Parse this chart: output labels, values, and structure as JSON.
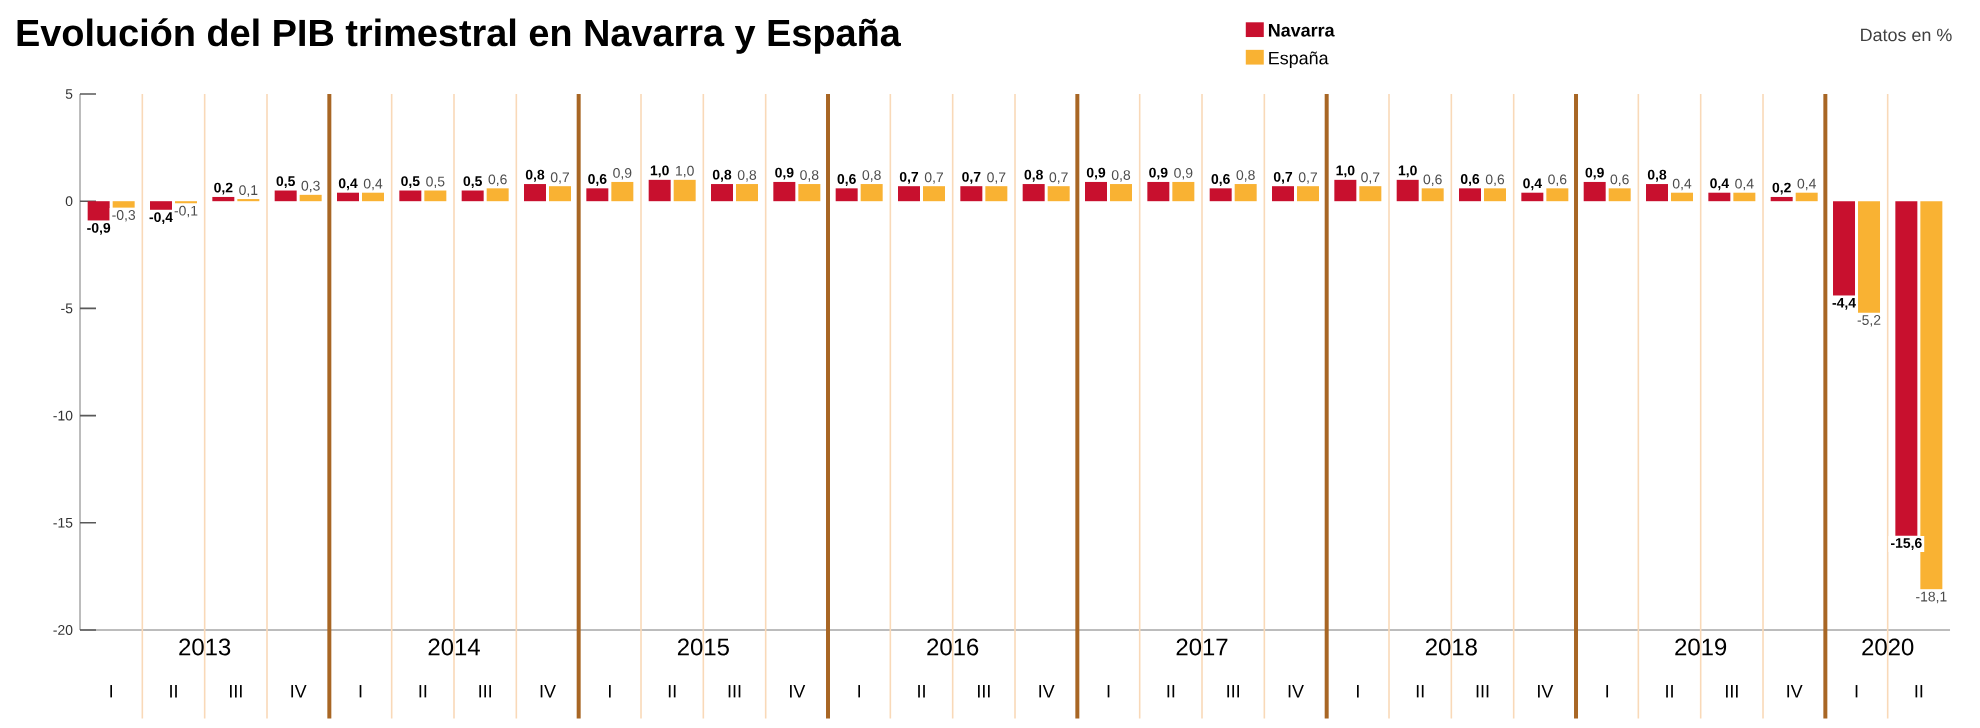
{
  "chart_data": {
    "type": "bar",
    "title": "Evolución del PIB trimestral en Navarra y España",
    "categories": [
      "I",
      "II",
      "III",
      "IV",
      "I",
      "II",
      "III",
      "IV",
      "I",
      "II",
      "III",
      "IV",
      "I",
      "II",
      "III",
      "IV",
      "I",
      "II",
      "III",
      "IV",
      "I",
      "II",
      "III",
      "IV",
      "I",
      "II",
      "III",
      "IV",
      "I",
      "II"
    ],
    "series": [
      {
        "name": "Navarra",
        "color": "#c8102e",
        "values": [
          -0.9,
          -0.4,
          0.2,
          0.5,
          0.4,
          0.5,
          0.5,
          0.8,
          0.6,
          1.0,
          0.8,
          0.9,
          0.6,
          0.7,
          0.7,
          0.8,
          0.9,
          0.9,
          0.6,
          0.7,
          1.0,
          1.0,
          0.6,
          0.4,
          0.9,
          0.8,
          0.4,
          0.2,
          -4.4,
          -15.6
        ],
        "value_labels": [
          "-0,9",
          "-0,4",
          "0,2",
          "0,5",
          "0,4",
          "0,5",
          "0,5",
          "0,8",
          "0,6",
          "1,0",
          "0,8",
          "0,9",
          "0,6",
          "0,7",
          "0,7",
          "0,8",
          "0,9",
          "0,9",
          "0,6",
          "0,7",
          "1,0",
          "1,0",
          "0,6",
          "0,4",
          "0,9",
          "0,8",
          "0,4",
          "0,2",
          "-4,4",
          "-15,6"
        ]
      },
      {
        "name": "España",
        "color": "#f9b233",
        "values": [
          -0.3,
          -0.1,
          0.1,
          0.3,
          0.4,
          0.5,
          0.6,
          0.7,
          0.9,
          1.0,
          0.8,
          0.8,
          0.8,
          0.7,
          0.7,
          0.7,
          0.8,
          0.9,
          0.8,
          0.7,
          0.7,
          0.6,
          0.6,
          0.6,
          0.6,
          0.4,
          0.4,
          0.4,
          -5.2,
          -18.1
        ],
        "value_labels": [
          "-0,3",
          "-0,1",
          "0,1",
          "0,3",
          "0,4",
          "0,5",
          "0,6",
          "0,7",
          "0,9",
          "1,0",
          "0,8",
          "0,8",
          "0,8",
          "0,7",
          "0,7",
          "0,7",
          "0,8",
          "0,9",
          "0,8",
          "0,7",
          "0,7",
          "0,6",
          "0,6",
          "0,6",
          "0,6",
          "0,4",
          "0,4",
          "0,4",
          "-5,2",
          "-18,1"
        ]
      }
    ],
    "ylim": [
      -20,
      5
    ],
    "yticks": [
      5,
      0,
      -5,
      -10,
      -15,
      -20
    ],
    "grid": "x",
    "legend": "top",
    "annotations": [
      "Datos en %",
      "2013",
      "2014",
      "2015",
      "2016",
      "2017",
      "2018",
      "2019",
      "2020"
    ]
  }
}
